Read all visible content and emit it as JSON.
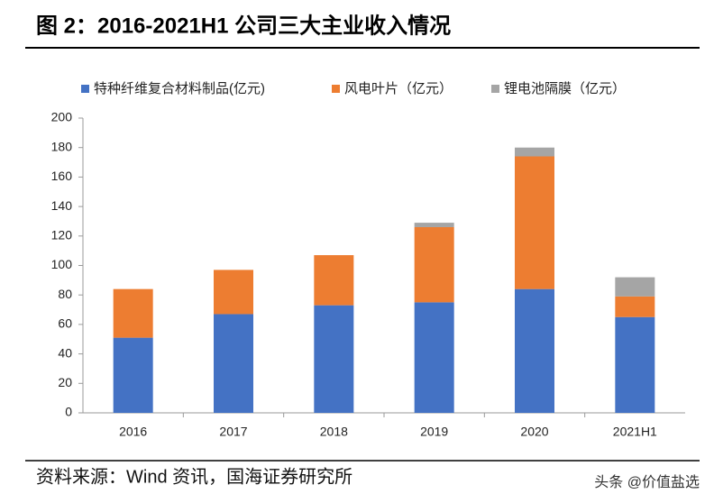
{
  "chart_data": {
    "type": "stacked_bar",
    "title": "图 2：2016-2021H1 公司三大主业收入情况",
    "source": "资料来源：Wind 资讯，国海证券研究所",
    "watermark": "头条 @价值盐选",
    "categories": [
      "2016",
      "2017",
      "2018",
      "2019",
      "2020",
      "2021H1"
    ],
    "series": [
      {
        "name": "特种纤维复合材料制品(亿元)",
        "color": "#4472c4",
        "values": [
          51,
          67,
          73,
          75,
          84,
          65
        ]
      },
      {
        "name": "风电叶片（亿元）",
        "color": "#ed7d31",
        "values": [
          33,
          30,
          34,
          51,
          90,
          14
        ]
      },
      {
        "name": "锂电池隔膜（亿元）",
        "color": "#a5a5a5",
        "values": [
          null,
          null,
          null,
          3,
          6,
          13
        ]
      }
    ],
    "ylim": [
      0,
      200
    ],
    "yticks": [
      0,
      20,
      40,
      60,
      80,
      100,
      120,
      140,
      160,
      180,
      200
    ],
    "legend": "top",
    "grid": false
  }
}
